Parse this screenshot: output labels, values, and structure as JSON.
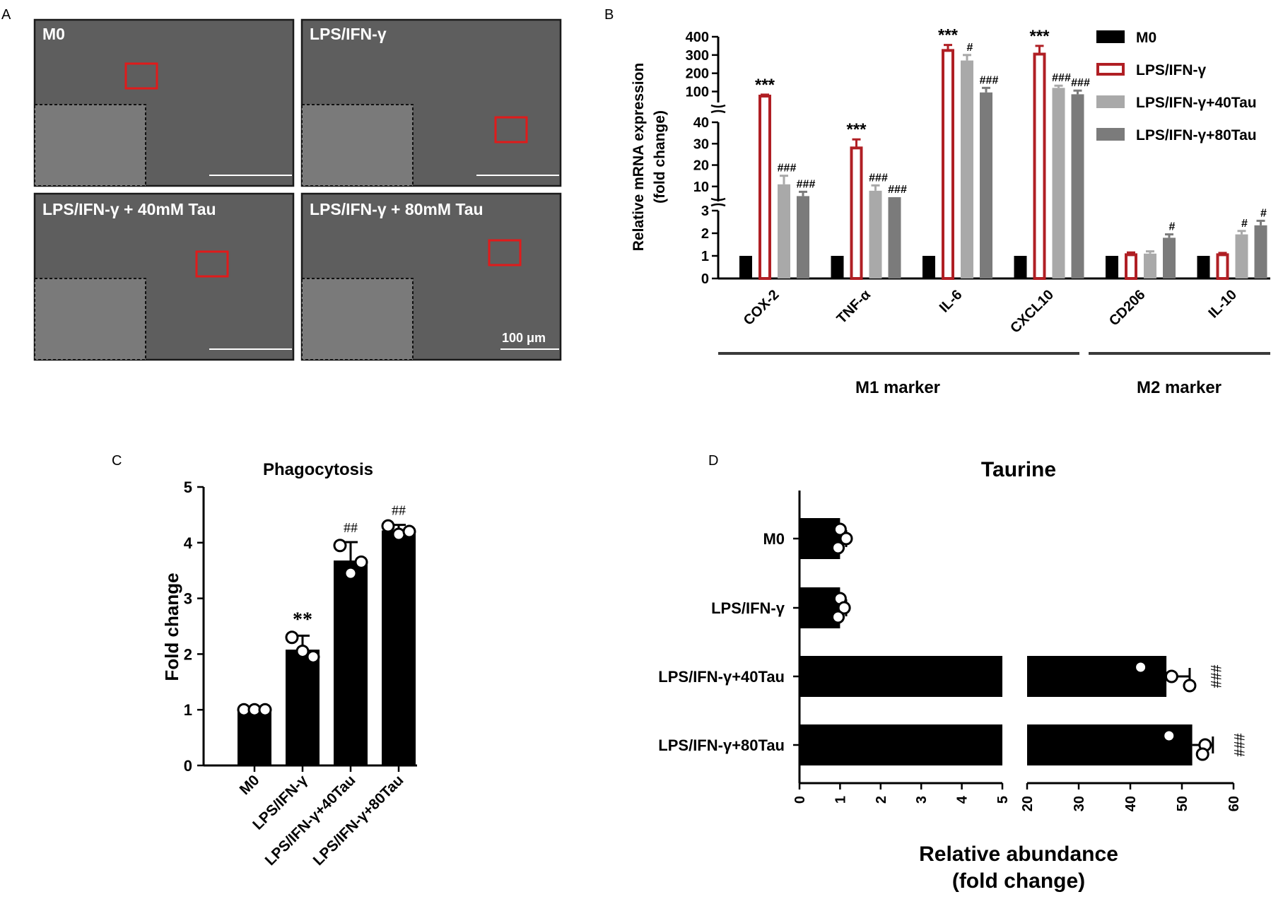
{
  "panel_labels": [
    "A",
    "B",
    "C",
    "D"
  ],
  "panel_a": {
    "images": [
      {
        "label": "M0"
      },
      {
        "label": "LPS/IFN-γ"
      },
      {
        "label": "LPS/IFN-γ + 40mM Tau"
      },
      {
        "label": "LPS/IFN-γ + 80mM Tau"
      }
    ],
    "scale_bar": "100 μm"
  },
  "chart_data": [
    {
      "id": "B",
      "type": "bar",
      "ylabel": "Relative mRNA expression\n(fold change)",
      "axis_segments": [
        {
          "range": [
            0,
            3
          ],
          "ticks": [
            0,
            1,
            2,
            3
          ]
        },
        {
          "range": [
            3,
            40
          ],
          "ticks": [
            10,
            20,
            30,
            40
          ]
        },
        {
          "range": [
            40,
            400
          ],
          "ticks": [
            100,
            200,
            300,
            400
          ]
        }
      ],
      "categories": [
        "COX-2",
        "TNF-α",
        "IL-6",
        "CXCL10",
        "CD206",
        "IL-10"
      ],
      "series": [
        {
          "name": "M0",
          "values": [
            1,
            1,
            1,
            1,
            1,
            1
          ],
          "errors": [
            0,
            0,
            0,
            0,
            0,
            0
          ],
          "color": "#000000",
          "style": "solid"
        },
        {
          "name": "LPS/IFN-γ",
          "values": [
            75,
            28,
            325,
            305,
            1.05,
            1.05
          ],
          "errors": [
            8,
            4,
            30,
            45,
            0.1,
            0.08
          ],
          "color": "#b01f24",
          "style": "open"
        },
        {
          "name": "LPS/IFN-γ+40Tau",
          "values": [
            11,
            8,
            270,
            120,
            1.1,
            1.95
          ],
          "errors": [
            4,
            2.5,
            30,
            12,
            0.1,
            0.15
          ],
          "color": "#a9a9a9",
          "style": "solid"
        },
        {
          "name": "LPS/IFN-γ+80Tau",
          "values": [
            5.5,
            5,
            95,
            85,
            1.8,
            2.35
          ],
          "errors": [
            2,
            0,
            25,
            20,
            0.15,
            0.2
          ],
          "color": "#7b7b7b",
          "style": "solid"
        }
      ],
      "annotations": [
        {
          "category": 0,
          "series": 1,
          "text": "***"
        },
        {
          "category": 0,
          "series": 2,
          "text": "###"
        },
        {
          "category": 0,
          "series": 3,
          "text": "###"
        },
        {
          "category": 1,
          "series": 1,
          "text": "***"
        },
        {
          "category": 1,
          "series": 2,
          "text": "###"
        },
        {
          "category": 1,
          "series": 3,
          "text": "###"
        },
        {
          "category": 2,
          "series": 1,
          "text": "***"
        },
        {
          "category": 2,
          "series": 2,
          "text": "#"
        },
        {
          "category": 2,
          "series": 3,
          "text": "###"
        },
        {
          "category": 3,
          "series": 1,
          "text": "***"
        },
        {
          "category": 3,
          "series": 2,
          "text": "###"
        },
        {
          "category": 3,
          "series": 3,
          "text": "###"
        },
        {
          "category": 4,
          "series": 3,
          "text": "#"
        },
        {
          "category": 5,
          "series": 2,
          "text": "#"
        },
        {
          "category": 5,
          "series": 3,
          "text": "#"
        }
      ],
      "groups": [
        {
          "label": "M1 marker",
          "categories": [
            0,
            1,
            2,
            3
          ]
        },
        {
          "label": "M2 marker",
          "categories": [
            4,
            5
          ]
        }
      ],
      "legend_position": "top-right"
    },
    {
      "id": "C",
      "type": "bar",
      "title": "Phagocytosis",
      "ylabel": "Fold change",
      "ylim": [
        0,
        5
      ],
      "yticks": [
        0,
        1,
        2,
        3,
        4,
        5
      ],
      "categories": [
        "M0",
        "LPS/IFN-γ",
        "LPS/IFN-γ+40Tau",
        "LPS/IFN-γ+80Tau"
      ],
      "values": [
        1,
        2.08,
        3.68,
        4.22
      ],
      "errors": [
        0,
        0.25,
        0.33,
        0.1
      ],
      "points": [
        [
          1,
          1,
          1
        ],
        [
          2.3,
          2.05,
          1.95
        ],
        [
          3.95,
          3.45,
          3.65
        ],
        [
          4.3,
          4.15,
          4.2
        ]
      ],
      "annotations": [
        "",
        "**",
        "##",
        "##"
      ],
      "color": "#000000"
    },
    {
      "id": "D",
      "type": "bar",
      "orientation": "horizontal",
      "title": "Taurine",
      "xlabel": "Relative abundance\n(fold change)",
      "axis_segments": [
        {
          "range": [
            0,
            5
          ],
          "ticks": [
            0,
            1,
            2,
            3,
            4,
            5
          ]
        },
        {
          "range": [
            20,
            60
          ],
          "ticks": [
            20,
            30,
            40,
            50,
            60
          ]
        }
      ],
      "categories": [
        "M0",
        "LPS/IFN-γ",
        "LPS/IFN-γ+40Tau",
        "LPS/IFN-γ+80Tau"
      ],
      "values": [
        1.0,
        1.0,
        47,
        52
      ],
      "errors": [
        0.15,
        0.15,
        4.5,
        4
      ],
      "points": [
        [
          1.0,
          1.15,
          0.95
        ],
        [
          1.0,
          1.1,
          0.95
        ],
        [
          42,
          48,
          51.5
        ],
        [
          47.5,
          54.5,
          54
        ]
      ],
      "annotations": [
        "",
        "",
        "###",
        "###"
      ],
      "color": "#000000"
    }
  ]
}
